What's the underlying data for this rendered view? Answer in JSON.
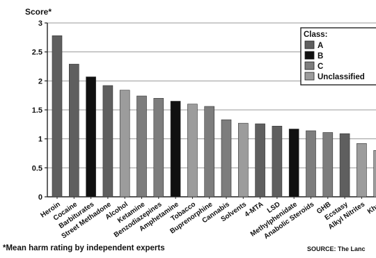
{
  "chart_data": {
    "type": "bar",
    "ylabel": "Score*",
    "ylim": [
      0,
      3
    ],
    "yticks": [
      "0",
      "0.5",
      "1",
      "1.5",
      "2",
      "2.5",
      "3"
    ],
    "grid": true,
    "legend_position": "top-right",
    "legend": {
      "title": "Class:",
      "entries": [
        {
          "name": "A",
          "color": "#5f5f5f"
        },
        {
          "name": "B",
          "color": "#101010"
        },
        {
          "name": "C",
          "color": "#7d7d7d"
        },
        {
          "name": "Unclassified",
          "color": "#9c9c9c"
        }
      ]
    },
    "categories": [
      "Heroin",
      "Cocaine",
      "Barbiturates",
      "Street Methadone",
      "Alcohol",
      "Ketamine",
      "Benzodiazepines",
      "Amphetamine",
      "Tobacco",
      "Buprenorphine",
      "Cannabis",
      "Solvents",
      "4-MTA",
      "LSD",
      "Methylphenidate",
      "Anabolic Steroids",
      "GHB",
      "Ecstasy",
      "Alkyl Nitrites",
      "Khat"
    ],
    "values": [
      2.78,
      2.29,
      2.07,
      1.92,
      1.84,
      1.74,
      1.7,
      1.65,
      1.6,
      1.56,
      1.33,
      1.27,
      1.26,
      1.22,
      1.17,
      1.14,
      1.11,
      1.09,
      0.92,
      0.8
    ],
    "classes": [
      "A",
      "A",
      "B",
      "A",
      "Unclassified",
      "C",
      "C",
      "B",
      "Unclassified",
      "C",
      "C",
      "Unclassified",
      "A",
      "A",
      "B",
      "C",
      "C",
      "A",
      "Unclassified",
      "Unclassified"
    ],
    "footnote": "*Mean harm rating by independent experts",
    "source": "SOURCE: The Lanc"
  }
}
